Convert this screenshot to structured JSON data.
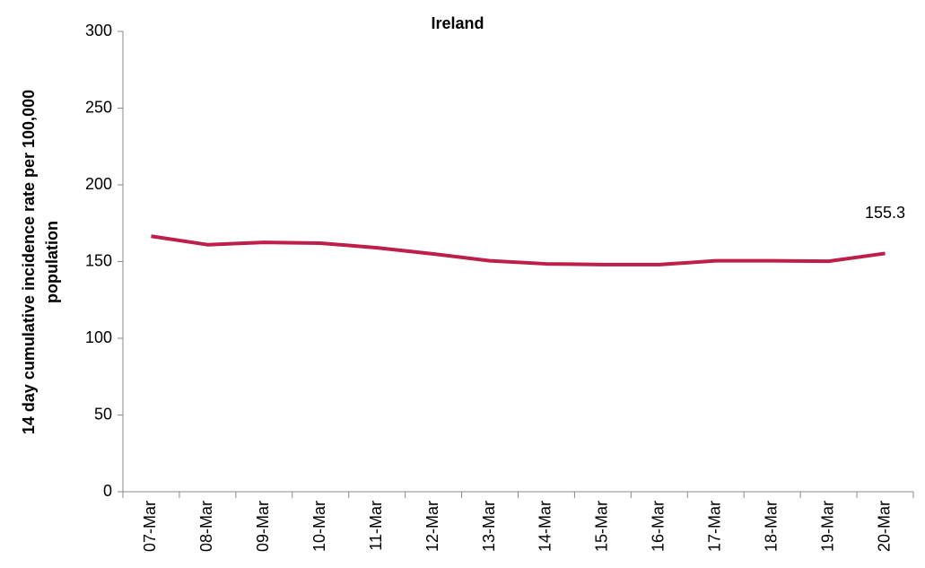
{
  "chart_data": {
    "type": "line",
    "title": "Ireland",
    "ylabel": [
      "14 day cumulative incidence rate per 100,000",
      "population"
    ],
    "categories": [
      "07-Mar",
      "08-Mar",
      "09-Mar",
      "10-Mar",
      "11-Mar",
      "12-Mar",
      "13-Mar",
      "14-Mar",
      "15-Mar",
      "16-Mar",
      "17-Mar",
      "18-Mar",
      "19-Mar",
      "20-Mar"
    ],
    "series": [
      {
        "name": "Ireland",
        "color": "#be1e4a",
        "values": [
          166.5,
          161,
          162.5,
          162,
          159,
          155,
          150.5,
          148.5,
          148,
          148,
          150.5,
          150.5,
          150.2,
          155.3
        ]
      }
    ],
    "ylim": [
      0,
      300
    ],
    "yticks": [
      0,
      50,
      100,
      150,
      200,
      250,
      300
    ],
    "grid": false
  }
}
